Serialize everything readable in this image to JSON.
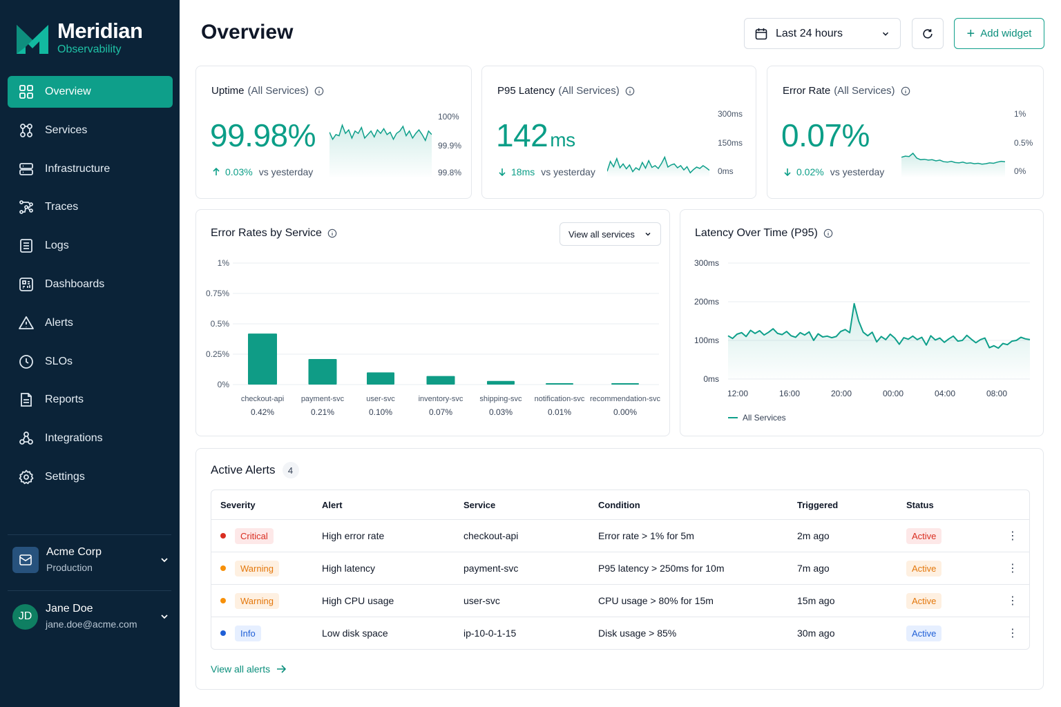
{
  "brand": {
    "name": "Meridian",
    "subtitle": "Observability"
  },
  "nav": [
    {
      "label": "Overview",
      "icon": "grid-icon",
      "active": true
    },
    {
      "label": "Services",
      "icon": "services-icon"
    },
    {
      "label": "Infrastructure",
      "icon": "server-icon"
    },
    {
      "label": "Traces",
      "icon": "traces-icon"
    },
    {
      "label": "Logs",
      "icon": "logs-icon"
    },
    {
      "label": "Dashboards",
      "icon": "dashboard-icon"
    },
    {
      "label": "Alerts",
      "icon": "alert-triangle-icon"
    },
    {
      "label": "SLOs",
      "icon": "clock-icon"
    },
    {
      "label": "Reports",
      "icon": "report-icon"
    },
    {
      "label": "Integrations",
      "icon": "integrations-icon"
    },
    {
      "label": "Settings",
      "icon": "gear-icon"
    }
  ],
  "org": {
    "name": "Acme Corp",
    "env": "Production"
  },
  "user": {
    "initials": "JD",
    "name": "Jane Doe",
    "email": "jane.doe@acme.com"
  },
  "header": {
    "title": "Overview",
    "time_range": "Last 24 hours",
    "add_widget": "Add widget"
  },
  "kpis": [
    {
      "title": "Uptime",
      "scope": "(All Services)",
      "value": "99.98%",
      "unit": "",
      "delta": "0.03%",
      "delta_dir": "up",
      "delta_suffix": "vs yesterday",
      "axis": [
        "100%",
        "99.9%",
        "99.8%"
      ]
    },
    {
      "title": "P95 Latency",
      "scope": "(All Services)",
      "value": "142",
      "unit": "ms",
      "delta": "18ms",
      "delta_dir": "down",
      "delta_suffix": "vs yesterday",
      "axis": [
        "300ms",
        "150ms",
        "0ms"
      ]
    },
    {
      "title": "Error Rate",
      "scope": "(All Services)",
      "value": "0.07%",
      "unit": "",
      "delta": "0.02%",
      "delta_dir": "down",
      "delta_suffix": "vs yesterday",
      "axis": [
        "1%",
        "0.5%",
        "0%"
      ]
    }
  ],
  "colors": {
    "accent": "#0e9f8a",
    "sidebar": "#0b2338",
    "critical": "#d92d20",
    "warning": "#f79009",
    "info": "#1f5fd6"
  },
  "error_chart": {
    "title": "Error Rates by Service",
    "filter": "View all services"
  },
  "latency_chart": {
    "title": "Latency Over Time (P95)",
    "legend": "All Services"
  },
  "chart_data": [
    {
      "type": "bar",
      "title": "Error Rates by Service",
      "categories": [
        "checkout-api",
        "payment-svc",
        "user-svc",
        "inventory-svc",
        "shipping-svc",
        "notification-svc",
        "recommendation-svc"
      ],
      "values": [
        0.42,
        0.21,
        0.1,
        0.07,
        0.03,
        0.01,
        0.0
      ],
      "value_labels": [
        "0.42%",
        "0.21%",
        "0.10%",
        "0.07%",
        "0.03%",
        "0.01%",
        "0.00%"
      ],
      "ylim": [
        0,
        1
      ],
      "yticks": [
        "1%",
        "0.75%",
        "0.5%",
        "0.25%",
        "0%"
      ],
      "ytick_values": [
        1,
        0.75,
        0.5,
        0.25,
        0
      ],
      "grid": true
    },
    {
      "type": "line",
      "title": "Latency Over Time (P95)",
      "xticks": [
        "12:00",
        "16:00",
        "20:00",
        "00:00",
        "04:00",
        "08:00"
      ],
      "yticks": [
        "300ms",
        "200ms",
        "100ms",
        "0ms"
      ],
      "ytick_values": [
        300,
        200,
        100,
        0
      ],
      "ylim": [
        0,
        300
      ],
      "series": [
        {
          "name": "All Services",
          "values": [
            112,
            105,
            116,
            120,
            110,
            126,
            118,
            125,
            114,
            121,
            130,
            118,
            115,
            123,
            112,
            108,
            120,
            114,
            122,
            100,
            117,
            109,
            111,
            107,
            110,
            123,
            128,
            120,
            195,
            150,
            121,
            112,
            121,
            96,
            110,
            102,
            116,
            106,
            90,
            107,
            103,
            111,
            102,
            108,
            88,
            112,
            101,
            106,
            95,
            104,
            111,
            98,
            100,
            113,
            103,
            94,
            102,
            106,
            81,
            86,
            80,
            92,
            89,
            98,
            100,
            108,
            104,
            102
          ]
        }
      ],
      "grid": true,
      "legend": "bottom-left"
    },
    {
      "type": "line",
      "title": "Uptime sparkline",
      "ylim": [
        99.8,
        100
      ],
      "series": [
        {
          "values": [
            99.985,
            99.979,
            99.983,
            99.982,
            99.991,
            99.984,
            99.987,
            99.98,
            99.986,
            99.984,
            99.989,
            99.98,
            99.983,
            99.986,
            99.981,
            99.987,
            99.984,
            99.988,
            99.983,
            99.985,
            99.979,
            99.984,
            99.986,
            99.99,
            99.982,
            99.986,
            99.98,
            99.984,
            99.987,
            99.983,
            99.978,
            99.986,
            99.983
          ]
        }
      ]
    },
    {
      "type": "line",
      "title": "P95 Latency sparkline",
      "ylim": [
        0,
        300
      ],
      "series": [
        {
          "values": [
            140,
            168,
            153,
            176,
            150,
            161,
            147,
            158,
            139,
            150,
            144,
            165,
            149,
            170,
            151,
            156,
            148,
            162,
            180,
            152,
            158,
            161,
            150,
            156,
            144,
            153,
            136,
            145,
            152,
            148,
            156,
            150,
            143
          ]
        }
      ]
    },
    {
      "type": "line",
      "title": "Error Rate sparkline",
      "ylim": [
        0,
        1
      ],
      "series": [
        {
          "values": [
            0.21,
            0.24,
            0.23,
            0.31,
            0.19,
            0.15,
            0.16,
            0.14,
            0.15,
            0.12,
            0.14,
            0.1,
            0.09,
            0.11,
            0.08,
            0.07,
            0.09,
            0.06,
            0.07,
            0.05,
            0.06,
            0.04,
            0.05,
            0.07,
            0.06,
            0.09,
            0.11,
            0.1
          ]
        }
      ]
    }
  ],
  "alerts": {
    "title": "Active Alerts",
    "count": "4",
    "columns": [
      "Severity",
      "Alert",
      "Service",
      "Condition",
      "Triggered",
      "Status"
    ],
    "rows": [
      {
        "severity": "Critical",
        "level": "critical",
        "alert": "High error rate",
        "service": "checkout-api",
        "condition": "Error rate > 1% for 5m",
        "triggered": "2m ago",
        "status": "Active"
      },
      {
        "severity": "Warning",
        "level": "warning",
        "alert": "High latency",
        "service": "payment-svc",
        "condition": "P95 latency > 250ms for 10m",
        "triggered": "7m ago",
        "status": "Active"
      },
      {
        "severity": "Warning",
        "level": "warning",
        "alert": "High CPU usage",
        "service": "user-svc",
        "condition": "CPU usage > 80% for 15m",
        "triggered": "15m ago",
        "status": "Active"
      },
      {
        "severity": "Info",
        "level": "info",
        "alert": "Low disk space",
        "service": "ip-10-0-1-15",
        "condition": "Disk usage > 85%",
        "triggered": "30m ago",
        "status": "Active"
      }
    ],
    "view_all": "View all alerts"
  }
}
